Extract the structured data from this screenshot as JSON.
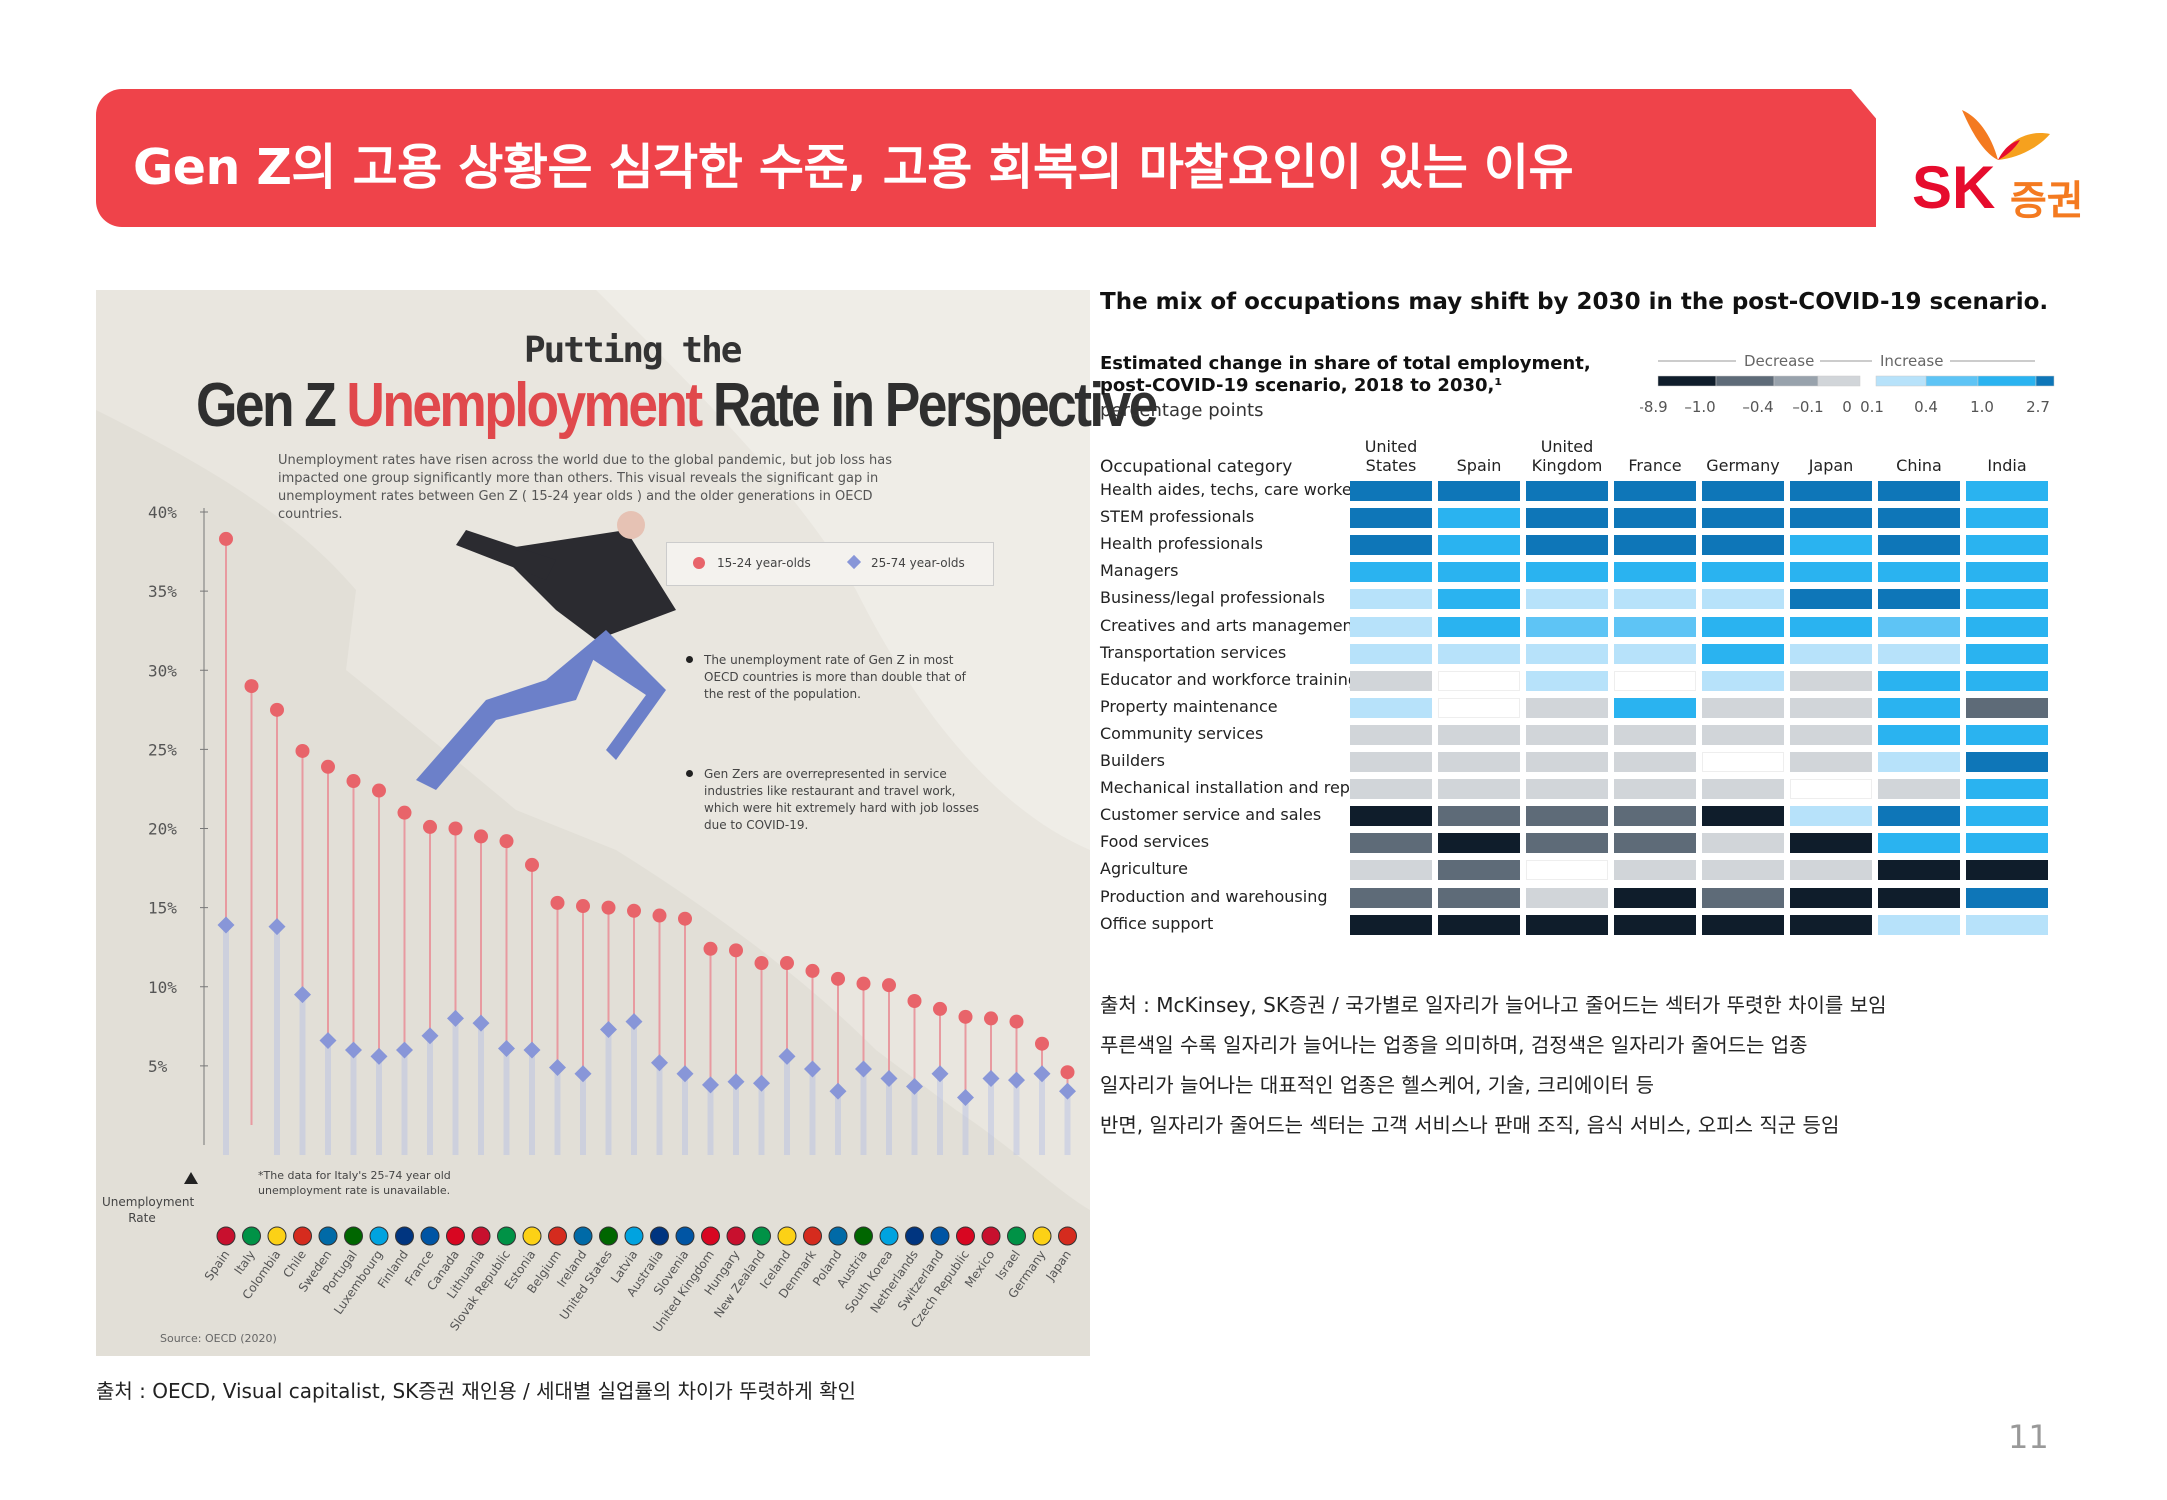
{
  "header": {
    "title": "Gen Z의 고용 상황은 심각한 수준, 고용 회복의 마찰요인이 있는 이유",
    "logo_text_en": "SK",
    "logo_text_kr": "증권"
  },
  "infographic": {
    "title_top": "Putting the",
    "title_pre": "Gen Z ",
    "title_red": "Unemployment",
    "title_post": " Rate in Perspective",
    "description": "Unemployment rates have risen across the world due to the global pandemic, but job loss has impacted one group significantly more than others. This visual reveals the significant gap in unemployment rates between Gen Z ( 15-24 year olds ) and the older generations in OECD countries.",
    "legend_1": "15-24 year-olds",
    "legend_2": "25-74 year-olds",
    "note_1": "The unemployment rate of Gen Z in most OECD countries is more than double that of the rest of the population.",
    "note_2": "Gen Zers are overrepresented in service industries like restaurant and travel work, which were hit extremely hard with job losses due to COVID-19.",
    "italy_note": "*The data for Italy's 25-74 year old unemployment rate is unavailable.",
    "axis_label": "Unemployment Rate",
    "source": "Source: OECD (2020)",
    "colors": {
      "youth": "#e8646a",
      "adult": "#8896d8"
    }
  },
  "occupations": {
    "title": "The mix of occupations may shift by 2030 in the post-COVID-19 scenario.",
    "subtitle_1": "Estimated change in share of total employment,",
    "subtitle_2": "post-COVID-19 scenario, 2018 to 2030,¹",
    "unit": "percentage points",
    "scale_decrease": "Decrease",
    "scale_increase": "Increase",
    "scale_ticks": [
      "–8.9",
      "–1.0",
      "–0.4",
      "–0.1",
      "0",
      "0.1",
      "0.4",
      "1.0",
      "2.7"
    ],
    "category_header": "Occupational category"
  },
  "captions": {
    "right_1": "출처 : McKinsey, SK증권 / 국가별로 일자리가 늘어나고 줄어드는 섹터가 뚜렷한 차이를 보임",
    "right_2": "푸른색일 수록 일자리가 늘어나는 업종을 의미하며, 검정색은 일자리가 줄어드는 업종",
    "right_3": "일자리가 늘어나는 대표적인 업종은 헬스케어, 기술, 크리에이터 등",
    "right_4": "반면, 일자리가 줄어드는 섹터는 고객 서비스나 판매 조직, 음식 서비스, 오피스 직군 등임",
    "left": "출처 : OECD, Visual capitalist, SK증권 재인용 / 세대별 실업률의 차이가 뚜렷하게 확인"
  },
  "page_number": "11",
  "chart_data": [
    {
      "type": "scatter",
      "title": "Gen Z Unemployment Rate in Perspective",
      "ylabel": "Unemployment Rate",
      "ylim": [
        0,
        40
      ],
      "yticks": [
        "5%",
        "10%",
        "15%",
        "20%",
        "25%",
        "30%",
        "35%",
        "40%"
      ],
      "categories": [
        "Spain",
        "Italy",
        "Colombia",
        "Chile",
        "Sweden",
        "Portugal",
        "Luxembourg",
        "Finland",
        "France",
        "Canada",
        "Lithuania",
        "Slovak Republic",
        "Estonia",
        "Belgium",
        "Ireland",
        "United States",
        "Latvia",
        "Australia",
        "Slovenia",
        "United Kingdom",
        "Hungary",
        "New Zealand",
        "Iceland",
        "Denmark",
        "Poland",
        "Austria",
        "South Korea",
        "Netherlands",
        "Switzerland",
        "Czech Republic",
        "Mexico",
        "Israel",
        "Germany",
        "Japan"
      ],
      "series": [
        {
          "name": "15-24 year-olds",
          "values": [
            38.3,
            29.0,
            27.5,
            24.9,
            23.9,
            23.0,
            22.4,
            21.0,
            20.1,
            20.0,
            19.5,
            19.2,
            17.7,
            15.3,
            15.1,
            15.0,
            14.8,
            14.5,
            14.3,
            12.4,
            12.3,
            11.5,
            11.5,
            11.0,
            10.5,
            10.2,
            10.1,
            9.1,
            8.6,
            8.1,
            8.0,
            7.8,
            6.4,
            4.6
          ]
        },
        {
          "name": "25-74 year-olds",
          "values": [
            13.9,
            null,
            13.8,
            9.5,
            6.6,
            6.0,
            5.6,
            6.0,
            6.9,
            8.0,
            7.7,
            6.1,
            6.0,
            4.9,
            4.5,
            7.3,
            7.8,
            5.2,
            4.5,
            3.8,
            4.0,
            3.9,
            5.6,
            4.8,
            3.4,
            4.8,
            4.2,
            3.7,
            4.5,
            3.0,
            4.2,
            4.1,
            4.5,
            3.4
          ]
        }
      ]
    },
    {
      "type": "heatmap",
      "title": "The mix of occupations may shift by 2030 in the post-COVID-19 scenario.",
      "x": [
        "United States",
        "Spain",
        "United Kingdom",
        "France",
        "Germany",
        "Japan",
        "China",
        "India"
      ],
      "x_display": [
        "United\nStates",
        "Spain",
        "United\nKingdom",
        "France",
        "Germany",
        "Japan",
        "China",
        "India"
      ],
      "y": [
        "Health aides, techs, care workers",
        "STEM professionals",
        "Health professionals",
        "Managers",
        "Business/legal professionals",
        "Creatives and arts management",
        "Transportation services",
        "Educator and workforce training",
        "Property maintenance",
        "Community services",
        "Builders",
        "Mechanical installation and repair",
        "Customer service and sales",
        "Food services",
        "Agriculture",
        "Production and warehousing",
        "Office support"
      ],
      "levels": {
        "-4": "#0f1d2b",
        "-3": "#5e6b78",
        "-2": "#98a2ac",
        "-1": "#d1d5d9",
        "0": "#ffffff",
        "1": "#b7e2fa",
        "2": "#5ec4f5",
        "3": "#2ab3f0",
        "4": "#0e76b8"
      },
      "values": [
        [
          4,
          4,
          4,
          4,
          4,
          4,
          4,
          3
        ],
        [
          4,
          3,
          4,
          4,
          4,
          4,
          4,
          3
        ],
        [
          4,
          3,
          4,
          4,
          4,
          3,
          4,
          3
        ],
        [
          3,
          3,
          3,
          3,
          3,
          3,
          3,
          3
        ],
        [
          1,
          3,
          1,
          1,
          1,
          4,
          4,
          3
        ],
        [
          1,
          3,
          2,
          2,
          3,
          3,
          2,
          3
        ],
        [
          1,
          1,
          1,
          1,
          3,
          1,
          1,
          3
        ],
        [
          -1,
          0,
          1,
          0,
          1,
          -1,
          3,
          3
        ],
        [
          1,
          0,
          -1,
          3,
          -1,
          -1,
          3,
          -3
        ],
        [
          -1,
          -1,
          -1,
          -1,
          -1,
          -1,
          3,
          3
        ],
        [
          -1,
          -1,
          -1,
          -1,
          0,
          -1,
          1,
          4
        ],
        [
          -1,
          -1,
          -1,
          -1,
          -1,
          0,
          -1,
          3
        ],
        [
          -4,
          -3,
          -3,
          -3,
          -4,
          1,
          4,
          3
        ],
        [
          -3,
          -4,
          -3,
          -3,
          -1,
          -4,
          3,
          3
        ],
        [
          -1,
          -3,
          0,
          -1,
          -1,
          -1,
          -4,
          -4
        ],
        [
          -3,
          -3,
          -1,
          -4,
          -3,
          -4,
          -4,
          4
        ],
        [
          -4,
          -4,
          -4,
          -4,
          -4,
          -4,
          1,
          1
        ]
      ]
    }
  ]
}
